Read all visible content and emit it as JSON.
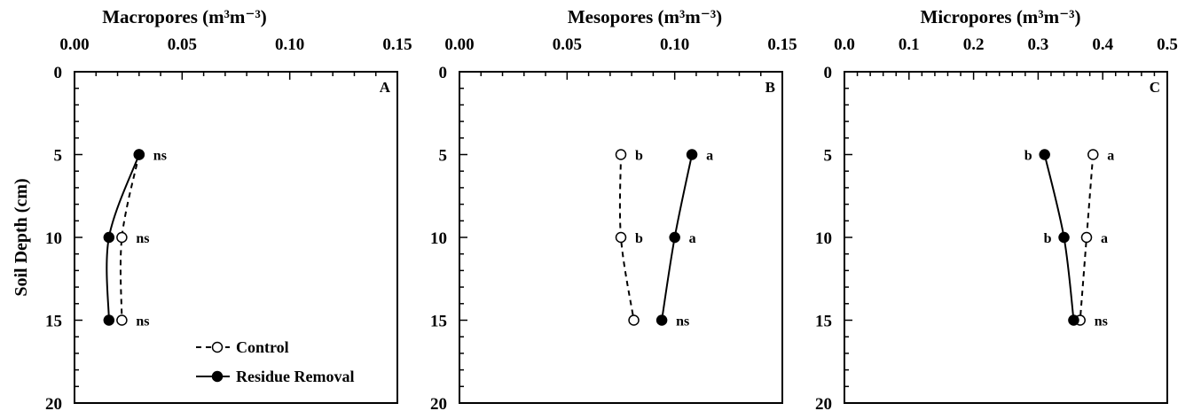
{
  "chart_data": [
    {
      "type": "line",
      "panel_label": "A",
      "title": "Macropores (m³m⁻³)",
      "ylabel": "Soil Depth (cm)",
      "xlim": [
        0,
        0.15
      ],
      "ylim": [
        0,
        20
      ],
      "x_ticks": [
        "0.00",
        "0.05",
        "0.10",
        "0.15"
      ],
      "x_tick_values": [
        0,
        0.05,
        0.1,
        0.15
      ],
      "y_ticks": [
        "0",
        "5",
        "10",
        "15",
        "20"
      ],
      "y_tick_values": [
        0,
        5,
        10,
        15,
        20
      ],
      "x_axis_position": "top",
      "y_axis_inverted": true,
      "depth": [
        5,
        10,
        15
      ],
      "series": [
        {
          "name": "Control",
          "values": [
            0.03,
            0.022,
            0.022
          ],
          "marker": "open-circle",
          "line": "dashed"
        },
        {
          "name": "Residue Removal",
          "values": [
            0.03,
            0.016,
            0.016
          ],
          "marker": "filled-circle",
          "line": "solid"
        }
      ],
      "annotations": [
        {
          "depth": 5,
          "text": "ns",
          "after": "max"
        },
        {
          "depth": 10,
          "text": "ns",
          "after": "max"
        },
        {
          "depth": 15,
          "text": "ns",
          "after": "max"
        }
      ],
      "legend": {
        "position": "bottom-right",
        "entries": [
          "Control",
          "Residue Removal"
        ]
      }
    },
    {
      "type": "line",
      "panel_label": "B",
      "title": "Mesopores (m³m⁻³)",
      "xlim": [
        0,
        0.15
      ],
      "ylim": [
        0,
        20
      ],
      "x_ticks": [
        "0.00",
        "0.05",
        "0.10",
        "0.15"
      ],
      "x_tick_values": [
        0,
        0.05,
        0.1,
        0.15
      ],
      "y_ticks": [
        "0",
        "5",
        "10",
        "15",
        "20"
      ],
      "y_tick_values": [
        0,
        5,
        10,
        15,
        20
      ],
      "x_axis_position": "top",
      "y_axis_inverted": true,
      "depth": [
        5,
        10,
        15
      ],
      "series": [
        {
          "name": "Control",
          "values": [
            0.075,
            0.075,
            0.081
          ],
          "marker": "open-circle",
          "line": "dashed"
        },
        {
          "name": "Residue Removal",
          "values": [
            0.108,
            0.1,
            0.094
          ],
          "marker": "filled-circle",
          "line": "solid"
        }
      ],
      "annotations": [
        {
          "depth": 5,
          "text": "b",
          "after": "Control"
        },
        {
          "depth": 5,
          "text": "a",
          "after": "Residue Removal"
        },
        {
          "depth": 10,
          "text": "b",
          "after": "Control"
        },
        {
          "depth": 10,
          "text": "a",
          "after": "Residue Removal"
        },
        {
          "depth": 15,
          "text": "ns",
          "after": "max"
        }
      ]
    },
    {
      "type": "line",
      "panel_label": "C",
      "title": "Micropores (m³m⁻³)",
      "xlim": [
        0,
        0.5
      ],
      "ylim": [
        0,
        20
      ],
      "x_ticks": [
        "0.0",
        "0.1",
        "0.2",
        "0.3",
        "0.4",
        "0.5"
      ],
      "x_tick_values": [
        0,
        0.1,
        0.2,
        0.3,
        0.4,
        0.5
      ],
      "y_ticks": [
        "0",
        "5",
        "10",
        "15",
        "20"
      ],
      "y_tick_values": [
        0,
        5,
        10,
        15,
        20
      ],
      "x_axis_position": "top",
      "y_axis_inverted": true,
      "depth": [
        5,
        10,
        15
      ],
      "series": [
        {
          "name": "Control",
          "values": [
            0.385,
            0.375,
            0.365
          ],
          "marker": "open-circle",
          "line": "dashed"
        },
        {
          "name": "Residue Removal",
          "values": [
            0.31,
            0.34,
            0.355
          ],
          "marker": "filled-circle",
          "line": "solid"
        }
      ],
      "annotations": [
        {
          "depth": 5,
          "text": "b",
          "before": "Residue Removal"
        },
        {
          "depth": 5,
          "text": "a",
          "after": "Control"
        },
        {
          "depth": 10,
          "text": "b",
          "before": "Residue Removal"
        },
        {
          "depth": 10,
          "text": "a",
          "after": "Control"
        },
        {
          "depth": 15,
          "text": "ns",
          "after": "max"
        }
      ]
    }
  ]
}
